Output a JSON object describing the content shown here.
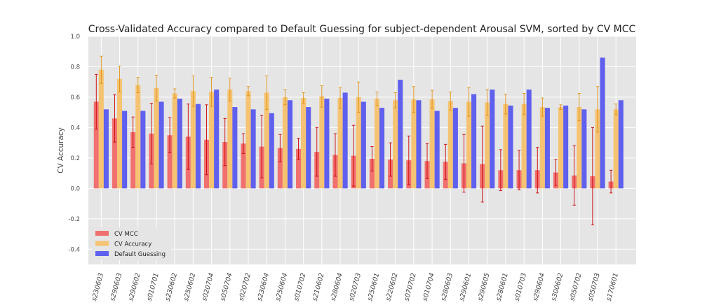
{
  "chart_data": {
    "type": "bar",
    "title": "Cross-Validated Accuracy compared to Default Guessing for subject-dependent Arousal SVM, sorted by CV MCC",
    "xlabel": "",
    "ylabel": "CV Accuracy",
    "ylim": [
      -0.5,
      1.0
    ],
    "yticks": [
      -0.4,
      -0.2,
      0.0,
      0.2,
      0.4,
      0.6,
      0.8,
      1.0
    ],
    "ytick_labels": [
      "-0.4",
      "-0.2",
      "0.0",
      "0.2",
      "0.4",
      "0.6",
      "0.8",
      "1.0"
    ],
    "grid": true,
    "legend_position": "lower-left",
    "categories": [
      "s230603",
      "s290603",
      "s290602",
      "s010701",
      "s230602",
      "s250602",
      "s020704",
      "s050704",
      "s020702",
      "s230604",
      "s250604",
      "s010702",
      "s210602",
      "s280604",
      "s020703",
      "s250601",
      "s220602",
      "s070702",
      "s010704",
      "s280603",
      "s290601",
      "s290605",
      "s280601",
      "s010703",
      "s290604",
      "s300602",
      "s050702",
      "s050703",
      "s170601"
    ],
    "series": [
      {
        "name": "CV MCC",
        "color": "#f07070",
        "error_color": "#cc0000",
        "values": [
          0.57,
          0.46,
          0.37,
          0.36,
          0.35,
          0.34,
          0.32,
          0.305,
          0.295,
          0.275,
          0.265,
          0.26,
          0.24,
          0.22,
          0.215,
          0.195,
          0.19,
          0.185,
          0.18,
          0.175,
          0.165,
          0.16,
          0.12,
          0.12,
          0.12,
          0.105,
          0.085,
          0.08,
          0.045
        ],
        "errors": [
          0.18,
          0.155,
          0.1,
          0.2,
          0.115,
          0.215,
          0.23,
          0.155,
          0.065,
          0.205,
          0.09,
          0.07,
          0.16,
          0.14,
          0.2,
          0.08,
          0.11,
          0.16,
          0.115,
          0.115,
          0.19,
          0.25,
          0.135,
          0.13,
          0.15,
          0.085,
          0.195,
          0.32,
          0.075
        ]
      },
      {
        "name": "CV Accuracy",
        "color": "#f5c372",
        "error_color": "#e09010",
        "values": [
          0.78,
          0.72,
          0.68,
          0.66,
          0.625,
          0.64,
          0.635,
          0.65,
          0.64,
          0.63,
          0.6,
          0.595,
          0.605,
          0.595,
          0.6,
          0.59,
          0.58,
          0.585,
          0.585,
          0.575,
          0.57,
          0.565,
          0.555,
          0.555,
          0.535,
          0.535,
          0.535,
          0.52,
          0.52
        ],
        "errors": [
          0.09,
          0.085,
          0.05,
          0.085,
          0.03,
          0.1,
          0.095,
          0.075,
          0.03,
          0.11,
          0.05,
          0.035,
          0.07,
          0.07,
          0.1,
          0.045,
          0.05,
          0.085,
          0.06,
          0.06,
          0.095,
          0.085,
          0.065,
          0.07,
          0.06,
          0.015,
          0.09,
          0.15,
          0.035
        ]
      },
      {
        "name": "Default Guessing",
        "color": "#6060ee",
        "values": [
          0.52,
          0.51,
          0.51,
          0.57,
          0.59,
          0.555,
          0.65,
          0.535,
          0.52,
          0.495,
          0.58,
          0.535,
          0.59,
          0.63,
          0.57,
          0.53,
          0.715,
          0.58,
          0.51,
          0.53,
          0.62,
          0.65,
          0.545,
          0.65,
          0.53,
          0.545,
          0.52,
          0.86,
          0.58
        ]
      }
    ]
  }
}
